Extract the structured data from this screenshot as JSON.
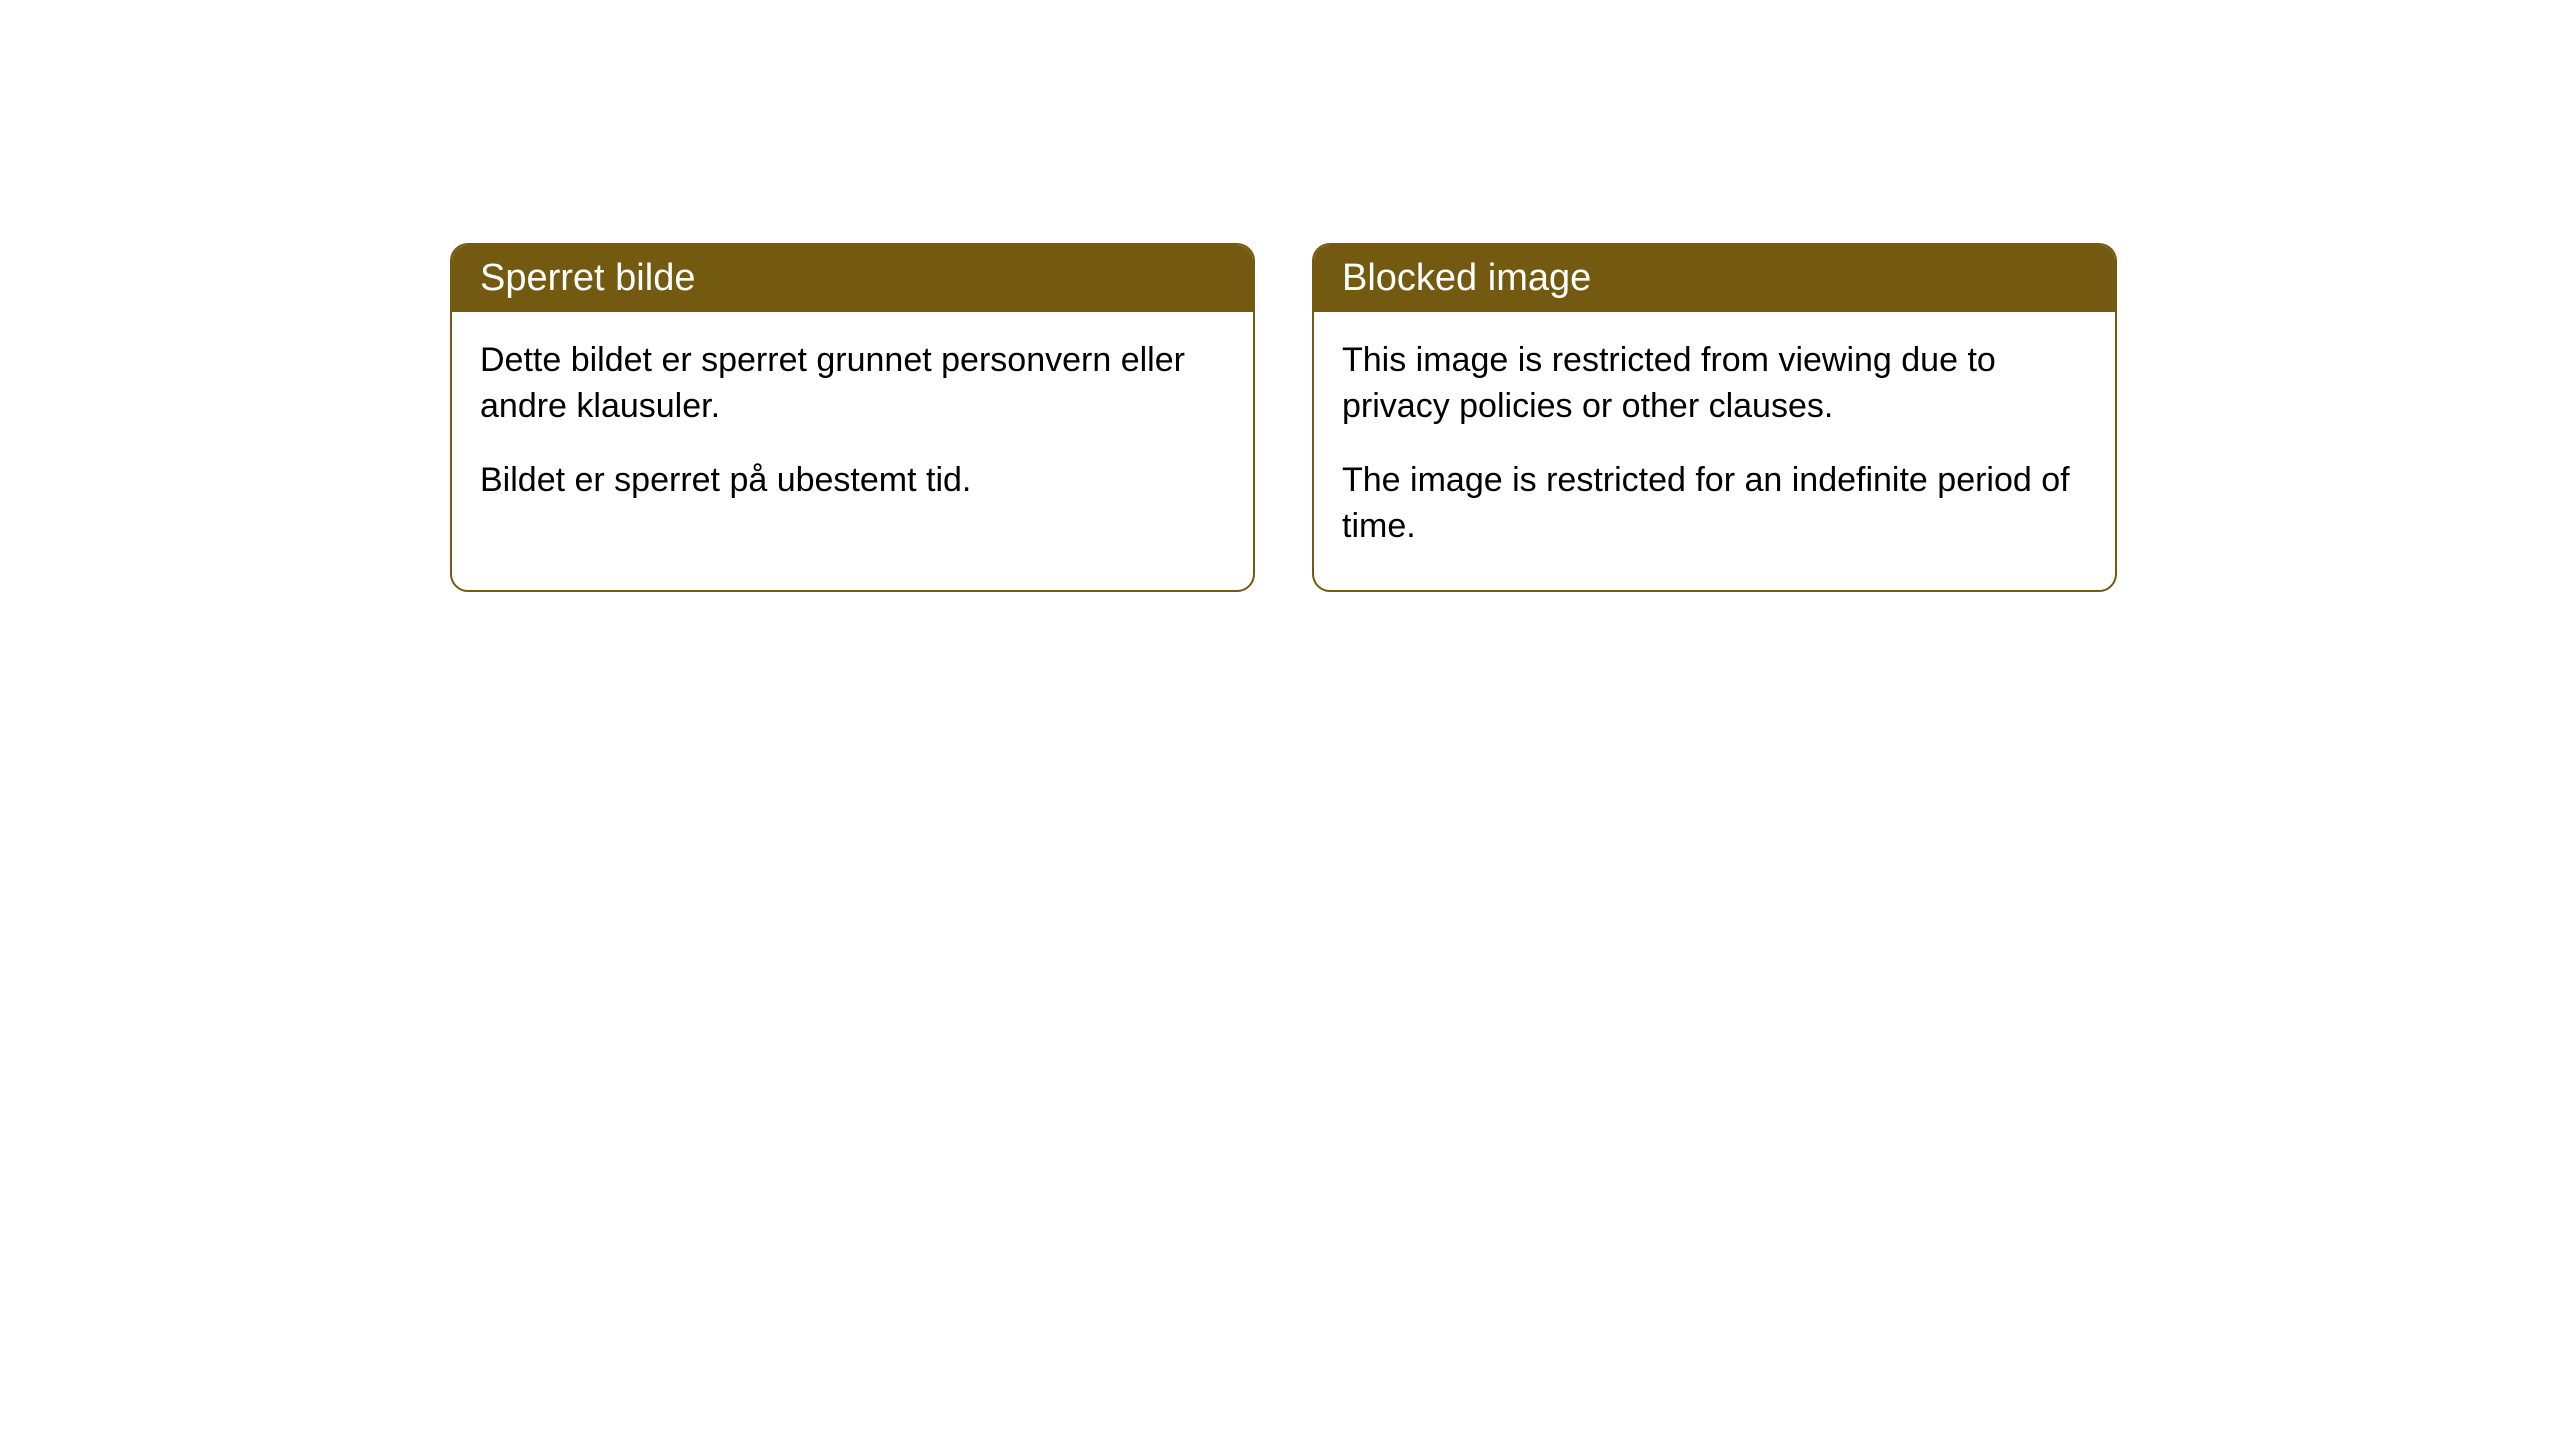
{
  "cards": [
    {
      "title": "Sperret bilde",
      "paragraph1": "Dette bildet er sperret grunnet personvern eller andre klausuler.",
      "paragraph2": "Bildet er sperret på ubestemt tid."
    },
    {
      "title": "Blocked image",
      "paragraph1": "This image is restricted from viewing due to privacy policies or other clauses.",
      "paragraph2": "The image is restricted for an indefinite period of time."
    }
  ],
  "style": {
    "header_background": "#745a11",
    "header_text_color": "#ffffff",
    "border_color": "#745a11",
    "body_background": "#ffffff",
    "body_text_color": "#000000",
    "border_radius": 18,
    "header_fontsize": 38,
    "body_fontsize": 34
  }
}
